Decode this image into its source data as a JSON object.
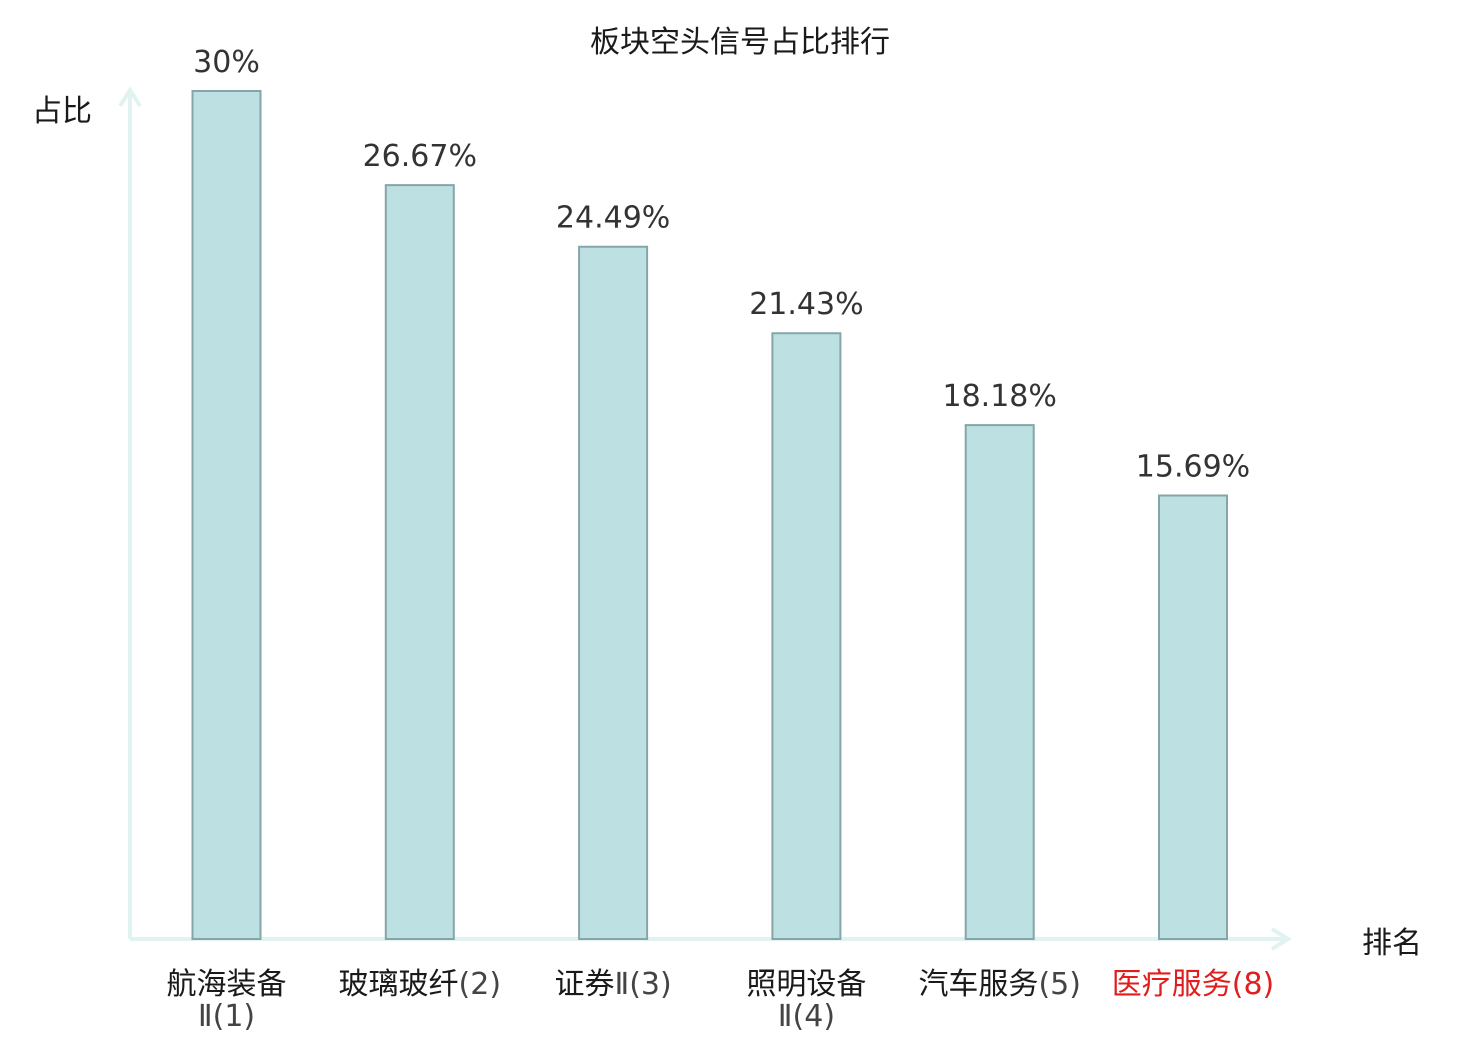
{
  "chart_data": {
    "type": "bar",
    "title": "板块空头信号占比排行",
    "xlabel": "排名",
    "ylabel": "占比",
    "ylim": [
      0,
      30
    ],
    "grid": false,
    "categories": [
      {
        "name": "航海装备",
        "rank": "Ⅱ(1)",
        "highlight": false
      },
      {
        "name": "玻璃玻纤",
        "rank": "(2)",
        "highlight": false
      },
      {
        "name": "证券",
        "rank": "Ⅱ(3)",
        "highlight": false
      },
      {
        "name": "照明设备",
        "rank": "Ⅱ(4)",
        "highlight": false
      },
      {
        "name": "汽车服务",
        "rank": "(5)",
        "highlight": false
      },
      {
        "name": "医疗服务",
        "rank": "(8)",
        "highlight": true
      }
    ],
    "values": [
      30,
      26.67,
      24.49,
      21.43,
      18.18,
      15.69
    ],
    "value_labels": [
      "30%",
      "26.67%",
      "24.49%",
      "21.43%",
      "18.18%",
      "15.69%"
    ],
    "colors": {
      "bar_fill": "#bde0e2",
      "bar_stroke": "#86a5a8",
      "axis": "#e0f3f1",
      "label": "#1a1a1a",
      "rank": "#444444",
      "highlight": "#e01e1e"
    }
  }
}
